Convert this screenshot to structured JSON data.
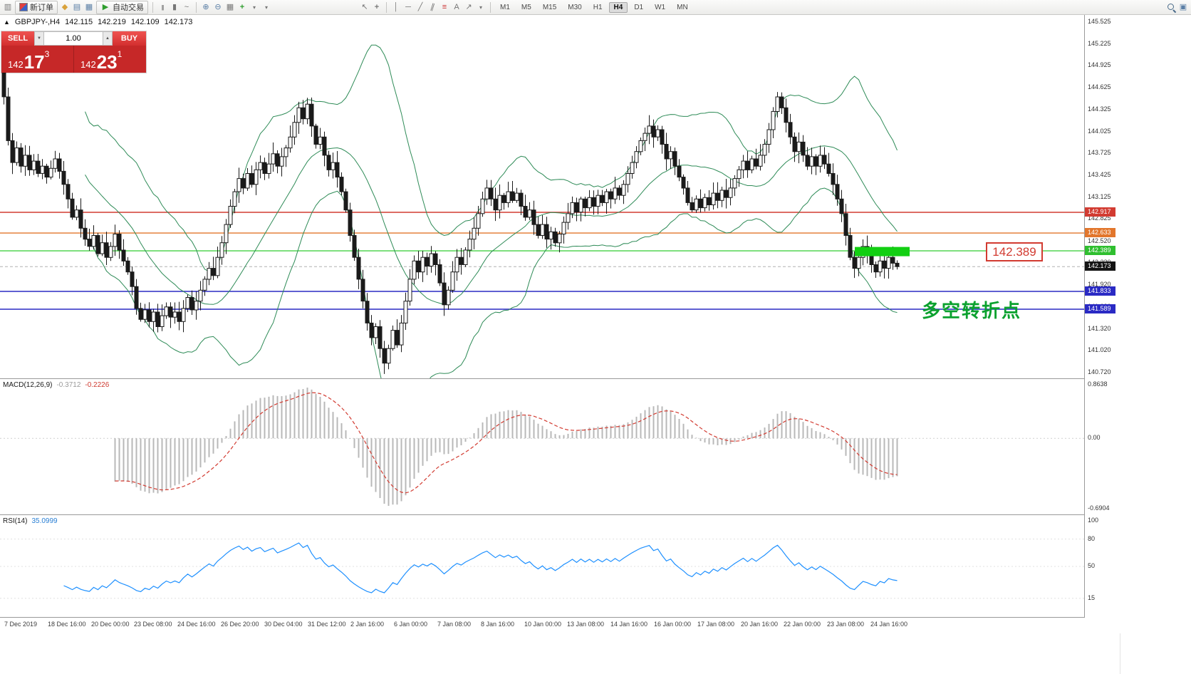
{
  "toolbar": {
    "new_order_label": "新订单",
    "autotrading_label": "自动交易",
    "timeframe_section_labels": [
      "M1",
      "M5",
      "M15",
      "M30",
      "H1",
      "H4",
      "D1",
      "W1",
      "MN"
    ],
    "active_timeframe": "H4"
  },
  "icons": {
    "chart-window": "▥",
    "profiles": "◆",
    "market-watch": "▤",
    "navigator": "▦",
    "autotrading-play": "▶",
    "bar-chart": "|||",
    "candlestick-chart": "▮",
    "line-chart": "~",
    "zoom-in": "⊕",
    "zoom-out": "⊖",
    "tile-windows": "▦",
    "indicators-plus": "+",
    "dropdown": "▾",
    "cursor": "↖",
    "crosshair": "+",
    "vertical-line": "│",
    "horizontal-line": "─",
    "trend-line": "╱",
    "channel": "∥",
    "fibonacci": "≡",
    "text-tool": "A",
    "arrow-tool": "↗",
    "panels": "▣",
    "spin-down": "▼",
    "spin-up": "▲"
  },
  "chart_info": {
    "toggle_glyph": "▲",
    "symbol": "GBPJPY-,H4",
    "open": "142.115",
    "high": "142.219",
    "low": "142.109",
    "close": "142.173"
  },
  "trade_panel": {
    "sell_label": "SELL",
    "buy_label": "BUY",
    "volume": "1.00",
    "sell_price_main": "142",
    "sell_price_big": "17",
    "sell_price_sup": "3",
    "buy_price_main": "142",
    "buy_price_big": "23",
    "buy_price_sup": "1"
  },
  "price_axis_ticks": [
    "145.525",
    "145.225",
    "144.925",
    "144.625",
    "144.325",
    "144.025",
    "143.725",
    "143.425",
    "143.125",
    "142.825",
    "142.520",
    "142.220",
    "141.920",
    "141.620",
    "141.320",
    "141.020",
    "140.720"
  ],
  "price_lines": [
    {
      "label": "142.917",
      "price": 142.917,
      "color": "#d23b31",
      "tag_bg": "#d23b31",
      "style": "solid"
    },
    {
      "label": "142.633",
      "price": 142.633,
      "color": "#e2762c",
      "tag_bg": "#e2762c",
      "style": "solid"
    },
    {
      "label": "142.389",
      "price": 142.389,
      "color": "#43d143",
      "tag_bg": "#2fbf2f",
      "style": "solid"
    },
    {
      "label": "142.173",
      "price": 142.173,
      "color": "#b0b0b0",
      "tag_bg": "#141414",
      "style": "dashed"
    },
    {
      "label": "141.833",
      "price": 141.833,
      "color": "#2a2ac4",
      "tag_bg": "#2a2ac4",
      "style": "solid"
    },
    {
      "label": "141.589",
      "price": 141.589,
      "color": "#2a2ac4",
      "tag_bg": "#2a2ac4",
      "style": "solid"
    }
  ],
  "annotations": {
    "price_callout": "142.389",
    "turning_point_text": "多空转折点",
    "highlight_rect": {
      "x": 1200,
      "width": 77,
      "price_top": 142.443,
      "price_bottom": 142.316,
      "color": "#12cf12"
    }
  },
  "macd_panel": {
    "title": "MACD(12,26,9)",
    "main_value": "-0.3712",
    "signal_value": "-0.2226",
    "axis_ticks": [
      "0.8638",
      "0.00",
      "-0.6904"
    ]
  },
  "rsi_panel": {
    "title": "RSI(14)",
    "value": "35.0999",
    "axis_ticks": [
      "100",
      "80",
      "50",
      "15"
    ],
    "levels": [
      80,
      50,
      15
    ]
  },
  "time_axis": [
    "7 Dec 2019",
    "18 Dec 16:00",
    "20 Dec 00:00",
    "23 Dec 08:00",
    "24 Dec 16:00",
    "26 Dec 20:00",
    "30 Dec 04:00",
    "31 Dec 12:00",
    "2 Jan 16:00",
    "6 Jan 00:00",
    "7 Jan 08:00",
    "8 Jan 16:00",
    "10 Jan 00:00",
    "13 Jan 08:00",
    "14 Jan 16:00",
    "16 Jan 00:00",
    "17 Jan 08:00",
    "20 Jan 16:00",
    "22 Jan 00:00",
    "23 Jan 08:00",
    "24 Jan 16:00"
  ],
  "chart_data": {
    "type": "candlestick",
    "symbol": "GBPJPY-",
    "timeframe": "H4",
    "current_ohlc": {
      "open": 142.115,
      "high": 142.219,
      "low": 142.109,
      "close": 142.173
    },
    "ylim": [
      140.72,
      145.525
    ],
    "levels": [
      142.917,
      142.633,
      142.389,
      142.173,
      141.833,
      141.589
    ],
    "indicators": {
      "bollinger": {
        "period": 20,
        "deviation": 2
      },
      "macd": {
        "fast": 12,
        "slow": 26,
        "signal": 9,
        "values": [
          -0.3712,
          -0.2226
        ]
      },
      "rsi": {
        "period": 14,
        "value": 35.0999
      }
    },
    "closes": [
      144.5,
      143.9,
      143.6,
      143.8,
      143.55,
      143.7,
      143.5,
      143.62,
      143.45,
      143.55,
      143.4,
      143.52,
      143.65,
      143.48,
      143.3,
      143.1,
      142.85,
      142.95,
      142.7,
      142.55,
      142.45,
      142.6,
      142.35,
      142.5,
      142.3,
      142.45,
      142.62,
      142.4,
      142.25,
      142.1,
      141.9,
      141.6,
      141.45,
      141.58,
      141.42,
      141.55,
      141.35,
      141.5,
      141.62,
      141.48,
      141.55,
      141.42,
      141.6,
      141.75,
      141.58,
      141.7,
      141.85,
      142.0,
      142.15,
      142.05,
      142.3,
      142.5,
      142.75,
      143.0,
      143.2,
      143.38,
      143.25,
      143.45,
      143.3,
      143.5,
      143.6,
      143.45,
      143.58,
      143.72,
      143.55,
      143.68,
      143.8,
      143.95,
      144.15,
      144.35,
      144.2,
      144.4,
      144.1,
      143.85,
      143.95,
      143.7,
      143.5,
      143.6,
      143.4,
      143.2,
      142.95,
      142.6,
      142.3,
      142.0,
      141.7,
      141.4,
      141.2,
      141.35,
      141.05,
      140.85,
      141.05,
      141.3,
      141.1,
      141.4,
      141.7,
      142.0,
      142.25,
      142.1,
      142.3,
      142.18,
      142.35,
      142.2,
      141.95,
      141.65,
      141.85,
      142.1,
      142.3,
      142.2,
      142.4,
      142.55,
      142.7,
      142.9,
      143.1,
      143.25,
      143.1,
      142.95,
      143.15,
      143.05,
      143.2,
      143.08,
      143.18,
      143.0,
      142.85,
      142.95,
      142.75,
      142.6,
      142.75,
      142.55,
      142.65,
      142.5,
      142.62,
      142.78,
      142.9,
      143.05,
      142.92,
      143.1,
      142.98,
      143.12,
      143.0,
      143.15,
      143.05,
      143.2,
      143.1,
      143.25,
      143.15,
      143.3,
      143.45,
      143.6,
      143.75,
      143.9,
      144.0,
      144.1,
      143.95,
      144.05,
      143.85,
      143.65,
      143.75,
      143.55,
      143.4,
      143.25,
      143.05,
      142.95,
      143.1,
      142.98,
      143.12,
      143.02,
      143.18,
      143.08,
      143.22,
      143.12,
      143.25,
      143.38,
      143.5,
      143.62,
      143.5,
      143.65,
      143.55,
      143.7,
      143.85,
      144.05,
      144.3,
      144.5,
      144.35,
      144.15,
      143.95,
      143.75,
      143.88,
      143.7,
      143.55,
      143.68,
      143.55,
      143.7,
      143.58,
      143.45,
      143.3,
      143.1,
      142.9,
      142.6,
      142.3,
      142.15,
      142.3,
      142.45,
      142.35,
      142.2,
      142.1,
      142.25,
      142.15,
      142.3,
      142.22,
      142.173
    ]
  }
}
